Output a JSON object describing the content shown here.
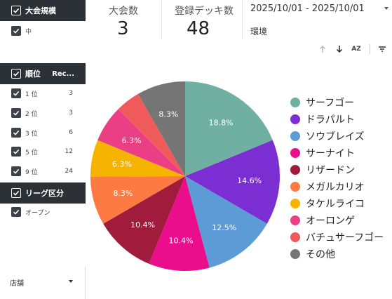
{
  "sidebar": {
    "tournament_scale": {
      "title": "大会規模",
      "items": [
        {
          "label": "中"
        }
      ]
    },
    "rank": {
      "title": "順位",
      "rec_header": "Rec...",
      "items": [
        {
          "label": "1 位",
          "count": "3"
        },
        {
          "label": "2 位",
          "count": "3"
        },
        {
          "label": "3 位",
          "count": "6"
        },
        {
          "label": "5 位",
          "count": "12"
        },
        {
          "label": "9 位",
          "count": "24"
        }
      ]
    },
    "league": {
      "title": "リーグ区分",
      "items": [
        {
          "label": "オープン"
        }
      ]
    },
    "store": {
      "label": "店舗"
    }
  },
  "scorecards": {
    "tournaments": {
      "label": "大会数",
      "value": "3"
    },
    "registered_decks": {
      "label": "登録デッキ数",
      "value": "48"
    }
  },
  "date_range": "2025/10/01 - 2025/10/01",
  "environment_label": "環境",
  "toolbar": {
    "sort_az_label": "AZ"
  },
  "chart_data": {
    "type": "pie",
    "title": "",
    "slices": [
      {
        "name": "サーフゴー",
        "value": 18.8,
        "label": "18.8%",
        "color": "#6fb0a3"
      },
      {
        "name": "ドラパルト",
        "value": 14.6,
        "label": "14.6%",
        "color": "#7b2fd2"
      },
      {
        "name": "ソウブレイズ",
        "value": 12.5,
        "label": "12.5%",
        "color": "#5d9bd6"
      },
      {
        "name": "サーナイト",
        "value": 10.4,
        "label": "10.4%",
        "color": "#ea0e8c"
      },
      {
        "name": "リザードン",
        "value": 10.4,
        "label": "10.4%",
        "color": "#a11b3c"
      },
      {
        "name": "メガルカリオ",
        "value": 8.3,
        "label": "8.3%",
        "color": "#fd7a42"
      },
      {
        "name": "タケルライコ",
        "value": 6.3,
        "label": "6.3%",
        "color": "#f6b400"
      },
      {
        "name": "オーロンゲ",
        "value": 6.3,
        "label": "6.3%",
        "color": "#ea3f84"
      },
      {
        "name": "バチュサーフゴー",
        "value": 4.2,
        "label": "",
        "color": "#f05a5a"
      },
      {
        "name": "その他",
        "value": 8.3,
        "label": "8.3%",
        "color": "#757575"
      }
    ],
    "legend_position": "right"
  }
}
